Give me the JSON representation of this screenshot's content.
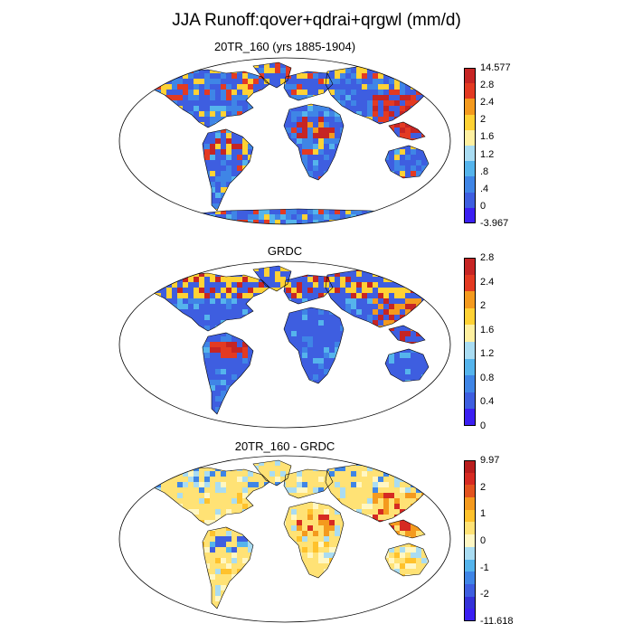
{
  "title": "JJA Runoff:qover+qdrai+qrgwl (mm/d)",
  "panels": [
    {
      "id": "model",
      "title": "20TR_160 (yrs 1885-1904)",
      "colorbar": {
        "colors": [
          "#3b1ff2",
          "#3e5ee0",
          "#3f85e6",
          "#55b4ec",
          "#a9dcf2",
          "#fff0a0",
          "#ffd235",
          "#f49a1e",
          "#e33a22",
          "#c62524"
        ],
        "labels": [
          "14.577",
          "2.8",
          "2.4",
          "2",
          "1.6",
          "1.2",
          ".8",
          ".4",
          "0",
          "-3.967"
        ]
      }
    },
    {
      "id": "grdc",
      "title": "GRDC",
      "colorbar": {
        "colors": [
          "#3b1ff2",
          "#3e5ee0",
          "#3f85e6",
          "#55b4ec",
          "#a9dcf2",
          "#fff0a0",
          "#ffd235",
          "#f49a1e",
          "#e33a22",
          "#c62524"
        ],
        "labels": [
          "2.8",
          "2.4",
          "2",
          "1.6",
          "1.2",
          "0.8",
          "0.4",
          "0"
        ]
      }
    },
    {
      "id": "diff",
      "title": "20TR_160 - GRDC",
      "colorbar": {
        "colors": [
          "#3b1ff2",
          "#3432d8",
          "#3e5ee0",
          "#3f85e6",
          "#55b4ec",
          "#a9dcf2",
          "#fff7c4",
          "#ffe275",
          "#ffc22c",
          "#f49a1e",
          "#e3531f",
          "#d62a22",
          "#b81d1d"
        ],
        "labels": [
          "9.97",
          "2",
          "1",
          "0",
          "-1",
          "-2",
          "-11.618"
        ]
      }
    }
  ]
}
